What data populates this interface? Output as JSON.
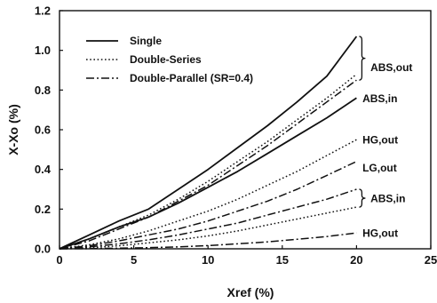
{
  "chart_data": {
    "type": "line",
    "xlabel": "Xref (%)",
    "ylabel": "X-Xo (%)",
    "xlim": [
      0,
      25
    ],
    "ylim": [
      0.0,
      1.2
    ],
    "x_ticks": [
      "0",
      "5",
      "10",
      "15",
      "20",
      "25"
    ],
    "y_ticks": [
      "0.0",
      "0.2",
      "0.4",
      "0.6",
      "0.8",
      "1.0",
      "1.2"
    ],
    "grid": false,
    "legend_position": "top-left",
    "legend": [
      {
        "label": "Single",
        "style": "solid"
      },
      {
        "label": "Double-Series",
        "style": "dotted"
      },
      {
        "label": "Double-Parallel (SR=0.4)",
        "style": "dashdot"
      }
    ],
    "series": [
      {
        "group": "Single",
        "style": "solid",
        "annotation": "ABS,out",
        "x": [
          0,
          2,
          4,
          6,
          8,
          10,
          12,
          14,
          16,
          18,
          20
        ],
        "y": [
          0,
          0.07,
          0.14,
          0.2,
          0.3,
          0.4,
          0.51,
          0.62,
          0.74,
          0.87,
          1.07
        ]
      },
      {
        "group": "Single",
        "style": "solid",
        "annotation": "ABS,in",
        "x": [
          0,
          2,
          4,
          6,
          8,
          10,
          12,
          14,
          16,
          18,
          20
        ],
        "y": [
          0,
          0.05,
          0.11,
          0.16,
          0.23,
          0.31,
          0.39,
          0.48,
          0.57,
          0.66,
          0.76
        ]
      },
      {
        "group": "Double-Series",
        "style": "dotted",
        "annotation": "ABS,out",
        "x": [
          0,
          2,
          4,
          6,
          8,
          10,
          12,
          14,
          16,
          18,
          20
        ],
        "y": [
          0,
          0.05,
          0.11,
          0.17,
          0.25,
          0.34,
          0.44,
          0.54,
          0.65,
          0.76,
          0.88
        ]
      },
      {
        "group": "Double-Parallel (SR=0.4)",
        "style": "dashdot",
        "annotation": "ABS,out",
        "x": [
          0,
          2,
          4,
          6,
          8,
          10,
          12,
          14,
          16,
          18,
          20
        ],
        "y": [
          0,
          0.04,
          0.1,
          0.16,
          0.24,
          0.32,
          0.42,
          0.52,
          0.63,
          0.74,
          0.85
        ]
      },
      {
        "group": "Double-Series",
        "style": "dotted",
        "annotation": "HG,out",
        "x": [
          0,
          2,
          4,
          6,
          8,
          10,
          12,
          14,
          16,
          18,
          20
        ],
        "y": [
          0,
          0.02,
          0.05,
          0.09,
          0.14,
          0.19,
          0.25,
          0.32,
          0.39,
          0.47,
          0.55
        ]
      },
      {
        "group": "Double-Parallel (SR=0.4)",
        "style": "dashdot",
        "annotation": "LG,out",
        "x": [
          0,
          2,
          4,
          6,
          8,
          10,
          12,
          14,
          16,
          18,
          20
        ],
        "y": [
          0,
          0.015,
          0.04,
          0.07,
          0.1,
          0.14,
          0.19,
          0.24,
          0.3,
          0.37,
          0.44
        ]
      },
      {
        "group": "Double-Parallel (SR=0.4)",
        "style": "dashdot",
        "annotation": "ABS,in",
        "x": [
          0,
          2,
          4,
          6,
          8,
          10,
          12,
          14,
          16,
          18,
          20
        ],
        "y": [
          0,
          0.01,
          0.025,
          0.045,
          0.07,
          0.1,
          0.13,
          0.17,
          0.21,
          0.25,
          0.3
        ]
      },
      {
        "group": "Double-Series",
        "style": "dotted",
        "annotation": "ABS,in",
        "x": [
          0,
          2,
          4,
          6,
          8,
          10,
          12,
          14,
          16,
          18,
          20
        ],
        "y": [
          0,
          0.005,
          0.015,
          0.03,
          0.045,
          0.065,
          0.09,
          0.12,
          0.15,
          0.18,
          0.21
        ]
      },
      {
        "group": "Double-Parallel (SR=0.4)",
        "style": "dashdot",
        "annotation": "HG,out",
        "x": [
          0,
          2,
          4,
          6,
          8,
          10,
          12,
          14,
          16,
          18,
          20
        ],
        "y": [
          0,
          0.001,
          0.003,
          0.006,
          0.01,
          0.016,
          0.025,
          0.035,
          0.048,
          0.062,
          0.08
        ]
      }
    ],
    "annotations": [
      {
        "text": "ABS,out",
        "x": 20.4,
        "y": 0.915,
        "bracket": [
          0.85,
          1.07
        ]
      },
      {
        "text": "ABS,in",
        "x": 20.4,
        "y": 0.76
      },
      {
        "text": "HG,out",
        "x": 20.4,
        "y": 0.55
      },
      {
        "text": "LG,out",
        "x": 20.4,
        "y": 0.41
      },
      {
        "text": "ABS,in",
        "x": 20.4,
        "y": 0.255,
        "bracket": [
          0.21,
          0.3
        ]
      },
      {
        "text": "HG,out",
        "x": 20.4,
        "y": 0.08
      }
    ]
  }
}
